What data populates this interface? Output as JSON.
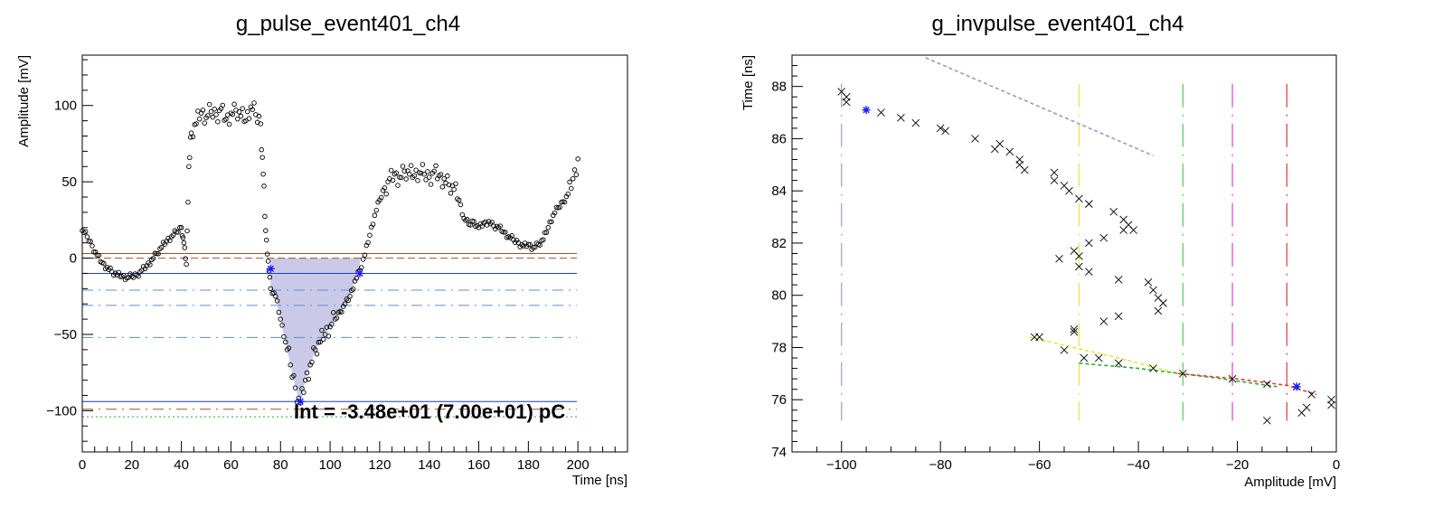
{
  "chart_data": [
    {
      "type": "scatter",
      "title": "g_pulse_event401_ch4",
      "xlabel": "Time [ns]",
      "ylabel": "Amplitude [mV]",
      "xlim": [
        0,
        220
      ],
      "ylim": [
        -127,
        133
      ],
      "x_ticks": [
        0,
        20,
        40,
        60,
        80,
        100,
        120,
        140,
        160,
        180,
        200
      ],
      "y_ticks": [
        -100,
        -50,
        0,
        50,
        100
      ],
      "grid": false,
      "annotation": "Int = -3.48e+01 (7.00e+01) pC",
      "series": [
        {
          "marker": "open-circle",
          "color": "#000000",
          "x": [
            0,
            2,
            4,
            6,
            8,
            10,
            12,
            14,
            16,
            18,
            20,
            22,
            24,
            26,
            28,
            30,
            32,
            34,
            36,
            38,
            40,
            41,
            42,
            43,
            44,
            46,
            48,
            50,
            52,
            54,
            56,
            58,
            60,
            62,
            64,
            66,
            68,
            70,
            72,
            73,
            74,
            75,
            76,
            78,
            80,
            82,
            84,
            86,
            88,
            90,
            92,
            94,
            96,
            98,
            100,
            102,
            104,
            106,
            108,
            110,
            112,
            114,
            116,
            118,
            120,
            122,
            124,
            126,
            128,
            130,
            132,
            134,
            136,
            138,
            140,
            142,
            144,
            146,
            148,
            150,
            152,
            154,
            156,
            158,
            160,
            162,
            164,
            166,
            168,
            170,
            172,
            174,
            176,
            178,
            180,
            182,
            184,
            186,
            188,
            190,
            192,
            194,
            196,
            198,
            200
          ],
          "y": [
            18,
            14,
            8,
            2,
            -3,
            -6,
            -9,
            -11,
            -12,
            -13,
            -12,
            -11,
            -8,
            -5,
            -1,
            3,
            7,
            11,
            14,
            17,
            20,
            10,
            -4,
            60,
            82,
            88,
            95,
            92,
            96,
            94,
            98,
            91,
            95,
            97,
            93,
            90,
            99,
            94,
            88,
            55,
            18,
            -2,
            -20,
            -25,
            -40,
            -55,
            -70,
            -85,
            -95,
            -80,
            -70,
            -60,
            -55,
            -50,
            -45,
            -40,
            -35,
            -30,
            -25,
            -15,
            -8,
            2,
            15,
            28,
            38,
            46,
            52,
            55,
            53,
            57,
            55,
            54,
            56,
            55,
            53,
            57,
            54,
            52,
            48,
            45,
            38,
            26,
            22,
            24,
            20,
            23,
            24,
            21,
            20,
            17,
            14,
            12,
            10,
            8,
            9,
            7,
            9,
            12,
            20,
            28,
            33,
            37,
            42,
            52,
            65
          ]
        }
      ],
      "reference_lines": [
        {
          "kind": "solid",
          "color": "#a0522d",
          "y": 3
        },
        {
          "kind": "dash",
          "color": "#a0522d",
          "y": 0
        },
        {
          "kind": "solid",
          "color": "#1e3ad6",
          "y": -10
        },
        {
          "kind": "dash",
          "color": "#1e3ad6",
          "y": -10
        },
        {
          "kind": "dashdot",
          "color": "#5b8fd6",
          "y": -21
        },
        {
          "kind": "dashdot",
          "color": "#5b8fd6",
          "y": -31
        },
        {
          "kind": "dashdot",
          "color": "#5b8fd6",
          "y": -52
        },
        {
          "kind": "solid",
          "color": "#1e3ad6",
          "y": -94
        },
        {
          "kind": "dashdot",
          "color": "#a0522d",
          "y": -99
        },
        {
          "kind": "dot",
          "color": "#2eaa2e",
          "y": -104
        }
      ],
      "integral_region": {
        "x_from": 76,
        "x_to": 113,
        "color": "#b8b8e0"
      },
      "highlight_points": [
        {
          "x": 76,
          "y": -7
        },
        {
          "x": 112,
          "y": -10
        },
        {
          "x": 88,
          "y": -94
        }
      ]
    },
    {
      "type": "scatter",
      "title": "g_invpulse_event401_ch4",
      "xlabel": "Amplitude [mV]",
      "ylabel": "Time [ns]",
      "xlim": [
        -110,
        0
      ],
      "ylim": [
        74,
        89.2
      ],
      "x_ticks": [
        -100,
        -80,
        -60,
        -40,
        -20,
        0
      ],
      "y_ticks": [
        74,
        76,
        78,
        80,
        82,
        84,
        86,
        88
      ],
      "grid": false,
      "series": [
        {
          "marker": "x",
          "color": "#000000",
          "x": [
            -100,
            -99,
            -99,
            -92,
            -88,
            -85,
            -80,
            -79,
            -73,
            -69,
            -68,
            -66,
            -64,
            -64,
            -63,
            -57,
            -57,
            -55,
            -54,
            -52,
            -50,
            -47,
            -45,
            -43,
            -42,
            -41,
            -43,
            -44,
            -38,
            -37,
            -36,
            -35,
            -36,
            -44,
            -47,
            -50,
            -52,
            -50,
            -56,
            -53,
            -52,
            -53,
            -53,
            -48,
            -60,
            -61,
            -55,
            -51,
            -44,
            -37,
            -31,
            -21,
            -14,
            -8,
            -5,
            -1,
            -1,
            -6,
            -7,
            -14
          ],
          "y": [
            87.8,
            87.6,
            87.4,
            87.0,
            86.8,
            86.6,
            86.4,
            86.3,
            86.0,
            85.6,
            85.8,
            85.5,
            85.2,
            85.0,
            84.8,
            84.7,
            84.4,
            84.2,
            84.0,
            83.7,
            83.5,
            82.2,
            83.2,
            82.9,
            82.7,
            82.5,
            82.5,
            80.6,
            80.5,
            80.2,
            79.9,
            79.7,
            79.4,
            79.2,
            79.0,
            80.9,
            81.1,
            82.0,
            81.4,
            81.7,
            81.5,
            78.7,
            78.6,
            77.6,
            78.4,
            78.4,
            77.9,
            77.6,
            77.4,
            77.2,
            77.0,
            76.8,
            76.6,
            76.5,
            76.2,
            76.0,
            75.8,
            75.7,
            75.5,
            75.2
          ]
        }
      ],
      "vertical_lines": [
        {
          "x": -100,
          "color": "#a09cc0",
          "kind": "longdashdot"
        },
        {
          "x": -52,
          "color": "#e6e63c",
          "kind": "longdashdot"
        },
        {
          "x": -31,
          "color": "#55d055",
          "kind": "longdashdot"
        },
        {
          "x": -21,
          "color": "#e040e0",
          "kind": "longdashdot"
        },
        {
          "x": -10,
          "color": "#e03c3c",
          "kind": "longdashdot"
        }
      ],
      "fit_lines": [
        {
          "color": "#9898c8",
          "x": [
            -83,
            -37
          ],
          "y": [
            89.1,
            85.35
          ]
        },
        {
          "color": "#e6e63c",
          "x": [
            -62,
            -52,
            -44,
            -32
          ],
          "y": [
            78.4,
            77.95,
            77.6,
            77.0
          ]
        },
        {
          "color": "#2eaa2e",
          "x": [
            -52,
            -40,
            -25,
            -12
          ],
          "y": [
            77.4,
            77.2,
            76.85,
            76.5
          ]
        },
        {
          "color": "#e03c3c",
          "x": [
            -32,
            -20,
            -10,
            -4
          ],
          "y": [
            77.0,
            76.8,
            76.55,
            76.2
          ]
        }
      ],
      "highlight_points": [
        {
          "x": -95,
          "y": 87.1
        },
        {
          "x": -8,
          "y": 76.5
        }
      ]
    }
  ]
}
